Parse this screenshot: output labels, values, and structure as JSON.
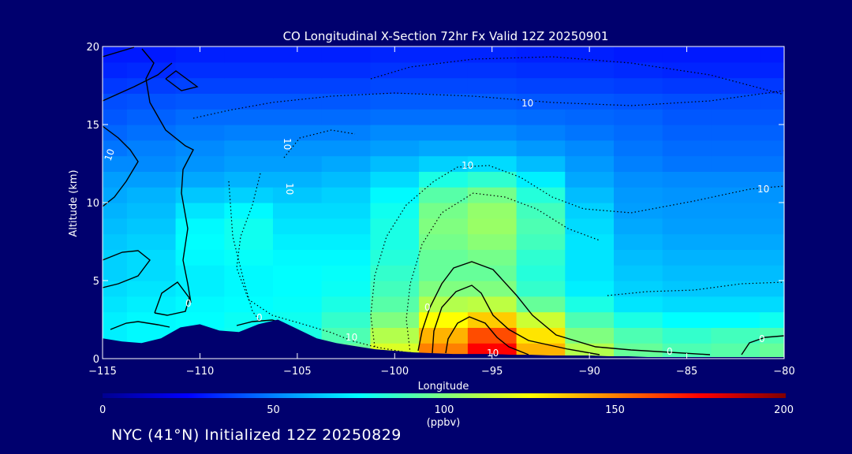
{
  "chart_data": {
    "type": "heatmap",
    "title": "CO Longitudinal X-Section 72hr  Fx Valid 12Z 20250901",
    "xlabel": "Longitude",
    "ylabel": "Altitude (km)",
    "xlim": [
      -115,
      -80
    ],
    "ylim": [
      0,
      20
    ],
    "x_ticks": [
      "-115",
      "-110",
      "-105",
      "-100",
      "-95",
      "-90",
      "-85",
      "-80"
    ],
    "x_tick_values": [
      -115,
      -110,
      -105,
      -100,
      -95,
      -90,
      -85,
      -80
    ],
    "y_ticks": [
      "0",
      "5",
      "10",
      "15",
      "20"
    ],
    "y_tick_values": [
      0,
      5,
      10,
      15,
      20
    ],
    "colorbar": {
      "min": 0,
      "max": 200,
      "ticks": [
        "0",
        "50",
        "100",
        "150",
        "200"
      ],
      "tick_values": [
        0,
        50,
        100,
        150,
        200
      ],
      "units": "(ppbv)"
    },
    "x": [
      -115,
      -112.5,
      -110,
      -107.5,
      -105,
      -102.5,
      -100,
      -97.5,
      -95,
      -92.5,
      -90,
      -87.5,
      -85,
      -82.5,
      -80
    ],
    "y": [
      0.5,
      1.5,
      2.5,
      3.5,
      4.5,
      5.5,
      6.5,
      7.5,
      8.5,
      9.5,
      10.5,
      11.5,
      12.5,
      13.5,
      14.5,
      15.5,
      16.5,
      17.5,
      18.5,
      19.5
    ],
    "values": [
      [
        70,
        72,
        75,
        78,
        82,
        95,
        118,
        150,
        175,
        140,
        110,
        95,
        90,
        92,
        95
      ],
      [
        72,
        74,
        76,
        78,
        80,
        90,
        110,
        140,
        160,
        130,
        100,
        90,
        85,
        88,
        90
      ],
      [
        72,
        74,
        75,
        77,
        78,
        85,
        100,
        125,
        135,
        115,
        90,
        80,
        75,
        75,
        78
      ],
      [
        70,
        72,
        74,
        75,
        76,
        80,
        92,
        110,
        112,
        95,
        80,
        70,
        68,
        68,
        68
      ],
      [
        68,
        70,
        72,
        74,
        75,
        77,
        88,
        100,
        100,
        85,
        72,
        66,
        64,
        64,
        64
      ],
      [
        66,
        68,
        72,
        74,
        75,
        76,
        85,
        95,
        95,
        82,
        70,
        64,
        62,
        62,
        62
      ],
      [
        66,
        68,
        74,
        76,
        74,
        74,
        82,
        95,
        98,
        84,
        70,
        62,
        60,
        60,
        60
      ],
      [
        64,
        66,
        75,
        78,
        72,
        72,
        80,
        98,
        102,
        88,
        70,
        60,
        58,
        58,
        58
      ],
      [
        62,
        64,
        74,
        78,
        70,
        70,
        80,
        100,
        105,
        90,
        68,
        58,
        56,
        56,
        56
      ],
      [
        60,
        62,
        70,
        74,
        68,
        68,
        78,
        98,
        104,
        88,
        66,
        56,
        55,
        55,
        55
      ],
      [
        58,
        60,
        64,
        66,
        64,
        66,
        74,
        92,
        98,
        82,
        62,
        55,
        54,
        54,
        54
      ],
      [
        56,
        56,
        58,
        60,
        60,
        62,
        68,
        80,
        84,
        72,
        58,
        53,
        52,
        52,
        52
      ],
      [
        52,
        52,
        54,
        56,
        56,
        58,
        62,
        66,
        68,
        62,
        55,
        50,
        48,
        48,
        48
      ],
      [
        48,
        50,
        52,
        54,
        54,
        54,
        56,
        58,
        58,
        55,
        52,
        48,
        46,
        46,
        46
      ],
      [
        45,
        47,
        49,
        50,
        50,
        50,
        52,
        52,
        52,
        50,
        48,
        46,
        44,
        44,
        44
      ],
      [
        42,
        44,
        46,
        46,
        46,
        46,
        47,
        47,
        47,
        46,
        45,
        44,
        42,
        42,
        42
      ],
      [
        40,
        41,
        42,
        42,
        42,
        42,
        43,
        43,
        43,
        42,
        42,
        41,
        40,
        40,
        40
      ],
      [
        36,
        37,
        38,
        38,
        38,
        38,
        39,
        39,
        39,
        38,
        38,
        37,
        36,
        36,
        36
      ],
      [
        32,
        33,
        34,
        34,
        34,
        34,
        35,
        35,
        35,
        34,
        34,
        33,
        32,
        32,
        32
      ],
      [
        30,
        30,
        31,
        31,
        31,
        31,
        32,
        32,
        32,
        31,
        31,
        30,
        30,
        30,
        30
      ]
    ],
    "terrain_km": {
      "lon": [
        -115,
        -114,
        -113,
        -112,
        -111,
        -110,
        -109,
        -108,
        -107,
        -106,
        -105,
        -104,
        -103,
        -102,
        -101,
        -100,
        -99,
        -98,
        -97,
        -96,
        -95,
        -94,
        -93,
        -92,
        -91,
        -90,
        -89,
        -88,
        -87,
        -86,
        -85,
        -84,
        -83,
        -82,
        -81,
        -80
      ],
      "alt": [
        1.3,
        1.1,
        1.0,
        1.3,
        2.0,
        2.2,
        1.8,
        1.7,
        2.2,
        2.5,
        1.9,
        1.3,
        1.0,
        0.8,
        0.6,
        0.5,
        0.4,
        0.35,
        0.3,
        0.3,
        0.3,
        0.25,
        0.25,
        0.2,
        0.2,
        0.2,
        0.15,
        0.15,
        0.1,
        0.1,
        0.1,
        0.1,
        0.1,
        0.1,
        0.1,
        0.1
      ]
    },
    "contour_labels": [
      "10",
      "10",
      "10",
      "10",
      "10",
      "10",
      "10",
      "10",
      "0",
      "0",
      "0",
      "0",
      "0"
    ],
    "grid": false,
    "legend": "colorbar-bottom"
  },
  "footer_text": "NYC (41°N) Initialized 12Z 20250829"
}
